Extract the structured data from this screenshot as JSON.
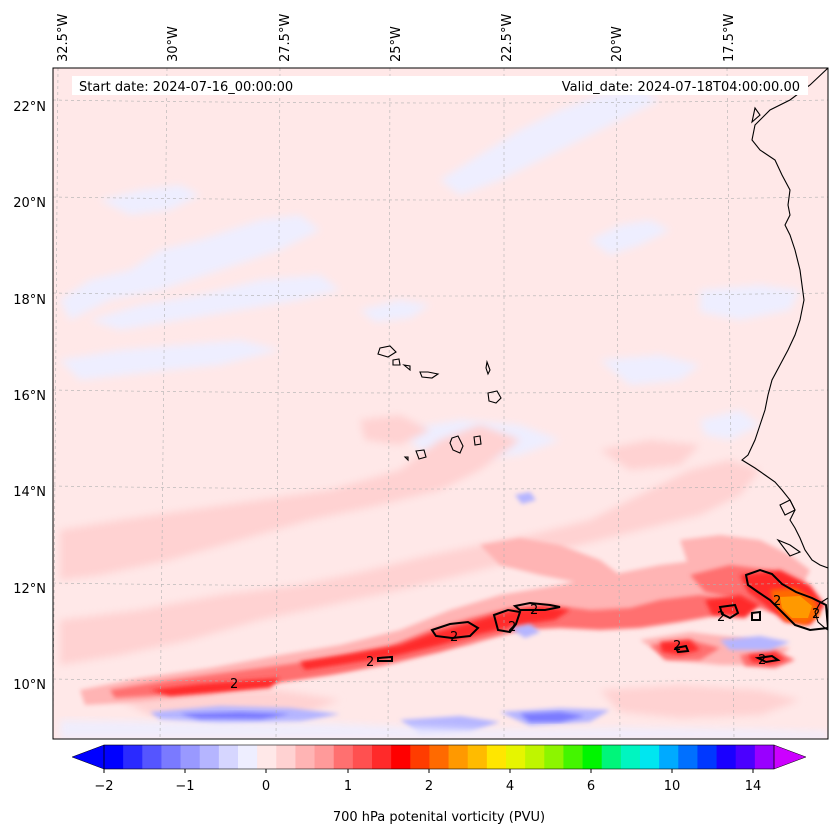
{
  "map": {
    "start_date": "Start date: 2024-07-16_00:00:00",
    "valid_date": "Valid_date: 2024-07-18T04:00:00.00",
    "lon_labels": [
      "32.5°W",
      "30°W",
      "27.5°W",
      "25°W",
      "22.5°W",
      "20°W",
      "17.5°W"
    ],
    "lat_labels": [
      "22°N",
      "20°N",
      "18°N",
      "16°N",
      "14°N",
      "12°N",
      "10°N"
    ],
    "contour_label": "2"
  },
  "colorbar": {
    "label": "700 hPa potenital vorticity (PVU)",
    "tick_labels": [
      "−2",
      "−1",
      "0",
      "1",
      "2",
      "4",
      "6",
      "10",
      "14"
    ],
    "colors": [
      "#0000ff",
      "#2a2aff",
      "#5555ff",
      "#7a7aff",
      "#9999ff",
      "#b5b5ff",
      "#d6d6ff",
      "#eeeeff",
      "#ffe8e8",
      "#ffd2d2",
      "#ffb4b4",
      "#ff9a9a",
      "#ff7070",
      "#ff5050",
      "#ff2a2a",
      "#ff0000",
      "#ff3c00",
      "#ff6a00",
      "#ff9900",
      "#ffbb00",
      "#ffe600",
      "#e6f500",
      "#bff500",
      "#8cf500",
      "#44f500",
      "#00f500",
      "#00f57a",
      "#00f5c0",
      "#00e6f0",
      "#00aaff",
      "#0070ff",
      "#0038ff",
      "#1a00ff",
      "#4b00ff",
      "#9900ff"
    ],
    "under_color": "#0000ff",
    "over_color": "#cc00ff"
  }
}
